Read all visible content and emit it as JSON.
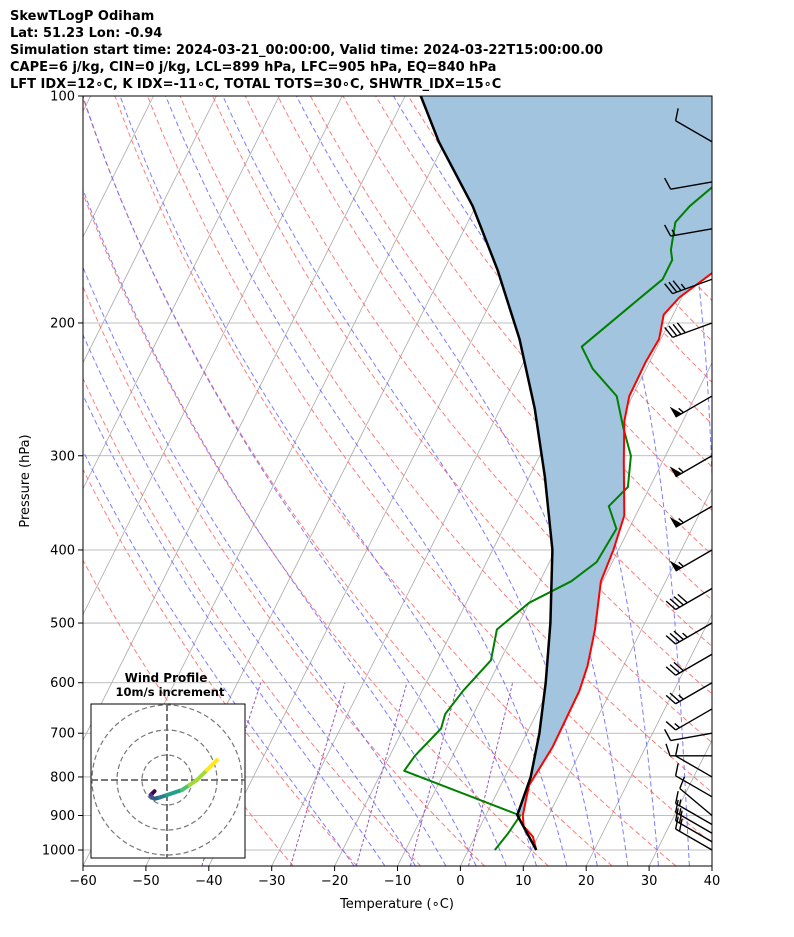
{
  "header": {
    "line1": "SkewTLogP Odiham",
    "line2": "Lat: 51.23   Lon: -0.94",
    "line3": "Simulation start time: 2024-03-21_00:00:00, Valid time: 2024-03-22T15:00:00.00",
    "line4": "CAPE=6 j/kg, CIN=0 j/kg, LCL=899 hPa, LFC=905 hPa, EQ=840 hPa",
    "line5": "LFT IDX=12∘C, K IDX=-11∘C, TOTAL TOTS=30∘C, SHWTR_IDX=15∘C"
  },
  "chart_data": {
    "type": "skewt-logp",
    "xlabel": "Temperature (∘C)",
    "ylabel": "Pressure (hPa)",
    "xlim": [
      -60,
      40
    ],
    "ylim": [
      1050,
      100
    ],
    "x_ticks": [
      "−60",
      "−50",
      "−40",
      "−30",
      "−20",
      "−10",
      "0",
      "10",
      "20",
      "30",
      "40"
    ],
    "y_ticks": [
      {
        "p": 1000,
        "label": "1000"
      },
      {
        "p": 900,
        "label": "900"
      },
      {
        "p": 800,
        "label": "800"
      },
      {
        "p": 700,
        "label": "700"
      },
      {
        "p": 600,
        "label": "600"
      },
      {
        "p": 500,
        "label": "500"
      },
      {
        "p": 400,
        "label": "400"
      },
      {
        "p": 300,
        "label": "300"
      },
      {
        "p": 200,
        "label": "200"
      },
      {
        "p": 100,
        "label": "100"
      }
    ],
    "grid": true,
    "colors": {
      "temperature": "#ff0000",
      "dewpoint": "#008000",
      "parcel": "#000000",
      "cape_fill": "#a2c4de",
      "dry_adiabat": "#ff6666",
      "moist_adiabat": "#6666ff",
      "mixing_ratio": "#9955bb",
      "isotherm": "#aaaaaa"
    },
    "series": [
      {
        "key": "temperature",
        "points": [
          [
            10.8,
            1000
          ],
          [
            9.2,
            960
          ],
          [
            6.9,
            930
          ],
          [
            5.9,
            900
          ],
          [
            5.2,
            860
          ],
          [
            4.5,
            820
          ],
          [
            4.8,
            780
          ],
          [
            5.2,
            730
          ],
          [
            5.1,
            670
          ],
          [
            5.0,
            615
          ],
          [
            4.3,
            570
          ],
          [
            2.6,
            510
          ],
          [
            -0.3,
            440
          ],
          [
            -0.8,
            400
          ],
          [
            -1.8,
            360
          ],
          [
            -6.2,
            305
          ],
          [
            -9.3,
            270
          ],
          [
            -10.5,
            250
          ],
          [
            -10.6,
            225
          ],
          [
            -10.3,
            210
          ],
          [
            -11.5,
            195
          ],
          [
            -10.4,
            185
          ],
          [
            -6.7,
            170
          ],
          [
            -4.3,
            158
          ],
          [
            -3.2,
            150
          ],
          [
            -3.2,
            140
          ],
          [
            -3.9,
            130
          ],
          [
            -3.5,
            125
          ],
          [
            -1.9,
            115
          ],
          [
            -1.8,
            105
          ],
          [
            -1.8,
            100
          ]
        ]
      },
      {
        "key": "dewpoint",
        "points": [
          [
            4.2,
            1000
          ],
          [
            5.0,
            950
          ],
          [
            5.5,
            900
          ],
          [
            -16.5,
            785
          ],
          [
            -16.0,
            750
          ],
          [
            -14.0,
            690
          ],
          [
            -14.5,
            660
          ],
          [
            -13.5,
            615
          ],
          [
            -11.5,
            560
          ],
          [
            -13.0,
            510
          ],
          [
            -10.0,
            470
          ],
          [
            -5.0,
            440
          ],
          [
            -2.5,
            415
          ],
          [
            -2.0,
            375
          ],
          [
            -5.0,
            350
          ],
          [
            -3.5,
            330
          ],
          [
            -5.5,
            300
          ],
          [
            -9.0,
            275
          ],
          [
            -12.5,
            250
          ],
          [
            -18.5,
            230
          ],
          [
            -22.0,
            215
          ],
          [
            -17.5,
            190
          ],
          [
            -14.5,
            175
          ],
          [
            -14.5,
            165
          ],
          [
            -15.5,
            160
          ],
          [
            -17.0,
            147
          ],
          [
            -16.0,
            140
          ],
          [
            -10.5,
            120
          ],
          [
            -2.5,
            100
          ]
        ]
      },
      {
        "key": "parcel",
        "points": [
          [
            10.8,
            1000
          ],
          [
            5.0,
            899
          ],
          [
            4.1,
            800
          ],
          [
            2.0,
            700
          ],
          [
            -1.0,
            600
          ],
          [
            -5.0,
            500
          ],
          [
            -10.5,
            400
          ],
          [
            -17.5,
            320
          ],
          [
            -24.5,
            260
          ],
          [
            -32.5,
            210
          ],
          [
            -41.5,
            170
          ],
          [
            -50.5,
            140
          ],
          [
            -61.0,
            115
          ],
          [
            -67.5,
            100
          ]
        ]
      }
    ],
    "wind_barbs": [
      {
        "p": 1000,
        "speed": 20,
        "dir": 300
      },
      {
        "p": 975,
        "speed": 20,
        "dir": 300
      },
      {
        "p": 950,
        "speed": 15,
        "dir": 300
      },
      {
        "p": 925,
        "speed": 15,
        "dir": 300
      },
      {
        "p": 900,
        "speed": 10,
        "dir": 310
      },
      {
        "p": 850,
        "speed": 10,
        "dir": 300
      },
      {
        "p": 800,
        "speed": 10,
        "dir": 300
      },
      {
        "p": 750,
        "speed": 10,
        "dir": 270
      },
      {
        "p": 700,
        "speed": 10,
        "dir": 260
      },
      {
        "p": 650,
        "speed": 15,
        "dir": 240
      },
      {
        "p": 600,
        "speed": 25,
        "dir": 240
      },
      {
        "p": 550,
        "speed": 30,
        "dir": 240
      },
      {
        "p": 500,
        "speed": 35,
        "dir": 240
      },
      {
        "p": 450,
        "speed": 40,
        "dir": 240
      },
      {
        "p": 400,
        "speed": 55,
        "dir": 240
      },
      {
        "p": 350,
        "speed": 55,
        "dir": 240
      },
      {
        "p": 300,
        "speed": 55,
        "dir": 240
      },
      {
        "p": 250,
        "speed": 55,
        "dir": 240
      },
      {
        "p": 200,
        "speed": 40,
        "dir": 250
      },
      {
        "p": 175,
        "speed": 35,
        "dir": 250
      },
      {
        "p": 150,
        "speed": 15,
        "dir": 260
      },
      {
        "p": 130,
        "speed": 10,
        "dir": 260
      },
      {
        "p": 115,
        "speed": 10,
        "dir": 300
      }
    ],
    "hodograph": {
      "title": "Wind Profile",
      "subtitle": "10m/s increment",
      "rings_ms": [
        10,
        20,
        30
      ],
      "points_ms": [
        [
          -5,
          -4.5
        ],
        [
          -6,
          -5.5
        ],
        [
          -6.5,
          -6
        ],
        [
          -6,
          -7
        ],
        [
          -5,
          -7.5
        ],
        [
          -3,
          -7
        ],
        [
          0,
          -6
        ],
        [
          3,
          -5
        ],
        [
          6,
          -4
        ],
        [
          9,
          -2
        ],
        [
          12,
          0
        ],
        [
          16,
          4
        ],
        [
          20,
          8
        ]
      ]
    }
  }
}
